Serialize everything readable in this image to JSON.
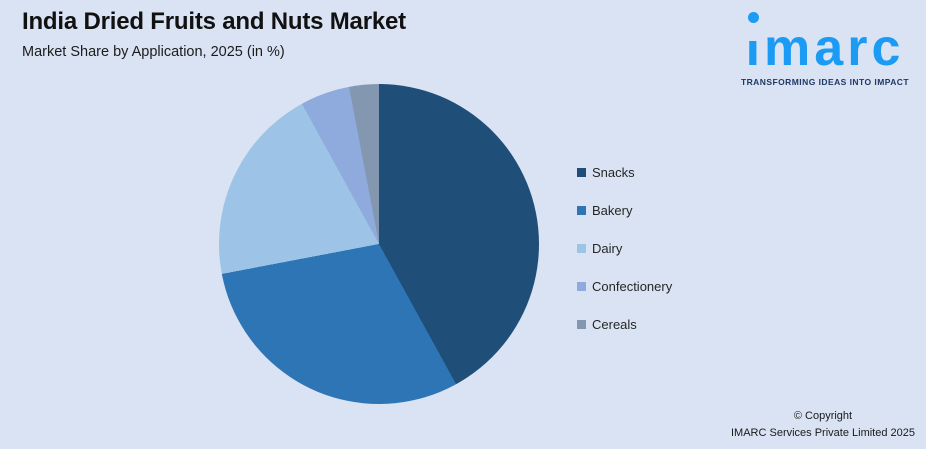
{
  "page": {
    "background": "#DAE3F3"
  },
  "header": {
    "title": "India Dried Fruits and Nuts Market",
    "subtitle": "Market Share by Application, 2025 (in %)"
  },
  "logo": {
    "brand": "imarc",
    "tagline": "TRANSFORMING IDEAS INTO IMPACT",
    "brand_color": "#1B9BF3",
    "tagline_color": "#1F3864"
  },
  "chart_data": {
    "type": "pie",
    "title": "India Dried Fruits and Nuts Market",
    "subtitle": "Market Share by Application, 2025 (in %)",
    "categories": [
      "Snacks",
      "Bakery",
      "Dairy",
      "Confectionery",
      "Cereals"
    ],
    "values": [
      42,
      30,
      20,
      5,
      3
    ],
    "unit": "%",
    "colors": [
      "#1F4E79",
      "#2E75B6",
      "#9DC3E6",
      "#8FAADC",
      "#8497B0"
    ],
    "start_angle_deg": 0,
    "direction": "clockwise",
    "legend_position": "right",
    "data_labels": false
  },
  "legend": {
    "items": [
      {
        "label": "Snacks",
        "color": "#1F4E79"
      },
      {
        "label": "Bakery",
        "color": "#2E75B6"
      },
      {
        "label": "Dairy",
        "color": "#9DC3E6"
      },
      {
        "label": "Confectionery",
        "color": "#8FAADC"
      },
      {
        "label": "Cereals",
        "color": "#8497B0"
      }
    ]
  },
  "footer": {
    "copyright_line1": "© Copyright",
    "copyright_line2": "IMARC Services Private Limited 2025"
  }
}
